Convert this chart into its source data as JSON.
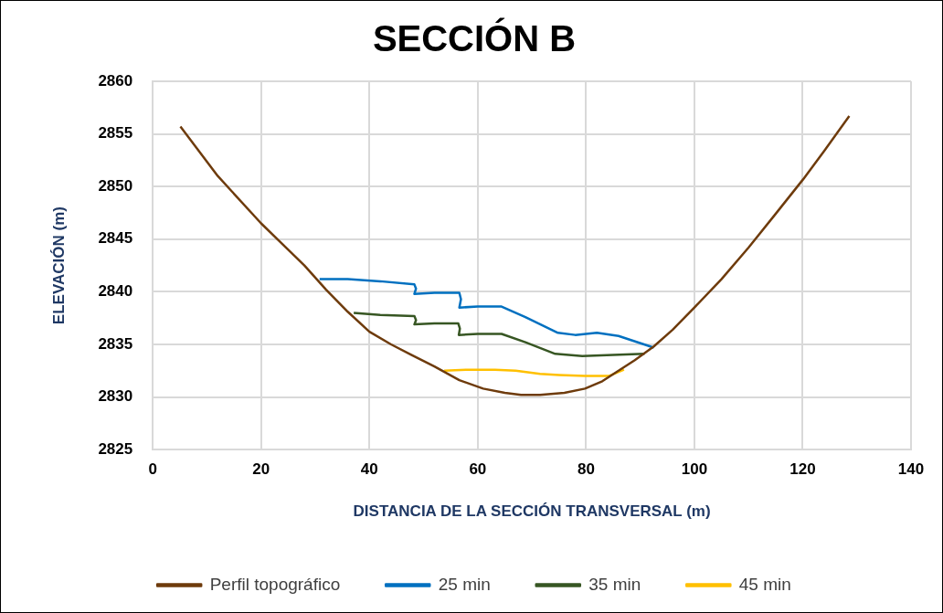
{
  "chart_data": {
    "type": "line",
    "title": "SECCIÓN B",
    "xlabel": "DISTANCIA DE LA SECCIÓN TRANSVERSAL (m)",
    "ylabel": "ELEVACIÓN (m)",
    "xlim": [
      0,
      140
    ],
    "xticks": [
      0,
      20,
      40,
      60,
      80,
      100,
      120,
      140
    ],
    "ylim": [
      2825,
      2860
    ],
    "yticks": [
      2825,
      2830,
      2835,
      2840,
      2845,
      2850,
      2855,
      2860
    ],
    "grid": true,
    "legend": "bottom",
    "marker": "none",
    "series": [
      {
        "name": "Perfil topográfico",
        "color": "#6e3b0c",
        "x": [
          5.1,
          12,
          20,
          28,
          32,
          36,
          40,
          44,
          47.8,
          52,
          56.6,
          61,
          65,
          68,
          71.5,
          76,
          79.8,
          83,
          86,
          89,
          92.5,
          96,
          100,
          105,
          110,
          115,
          120.1,
          124,
          128.6
        ],
        "values": [
          2855.7,
          2851,
          2846.5,
          2842.5,
          2840.2,
          2838.1,
          2836.2,
          2835,
          2834,
          2832.9,
          2831.6,
          2830.8,
          2830.4,
          2830.2,
          2830.2,
          2830.4,
          2830.8,
          2831.5,
          2832.5,
          2833.5,
          2834.8,
          2836.4,
          2838.5,
          2841.2,
          2844.2,
          2847.4,
          2850.7,
          2853.4,
          2856.7
        ]
      },
      {
        "name": "25 min",
        "color": "#0070c0",
        "x": [
          30.8,
          36,
          42,
          48.3,
          48.6,
          48.3,
          52,
          56.6,
          56.9,
          56.6,
          60,
          64.4,
          68.8,
          74.8,
          78,
          82,
          86,
          92.5
        ],
        "values": [
          2841.2,
          2841.2,
          2841,
          2840.7,
          2840.3,
          2839.8,
          2839.9,
          2839.9,
          2839.3,
          2838.5,
          2838.6,
          2838.6,
          2837.6,
          2836.1,
          2835.9,
          2836.1,
          2835.8,
          2834.7
        ]
      },
      {
        "name": "35 min",
        "color": "#375623",
        "x": [
          37.1,
          42,
          48.3,
          48.6,
          48.3,
          52,
          56.4,
          56.7,
          56.5,
          60,
          64.4,
          68.8,
          74.3,
          79.3,
          85,
          90.8
        ],
        "values": [
          2838,
          2837.8,
          2837.7,
          2837.3,
          2836.9,
          2837,
          2837,
          2836.5,
          2835.9,
          2836,
          2836,
          2835.2,
          2834.1,
          2833.9,
          2834,
          2834.1
        ]
      },
      {
        "name": "45 min",
        "color": "#ffc000",
        "x": [
          53.8,
          58,
          63.2,
          67,
          71.5,
          75,
          79.8,
          84.2,
          87
        ],
        "values": [
          2832.5,
          2832.6,
          2832.6,
          2832.5,
          2832.2,
          2832.1,
          2832,
          2832,
          2832.6
        ]
      }
    ]
  }
}
